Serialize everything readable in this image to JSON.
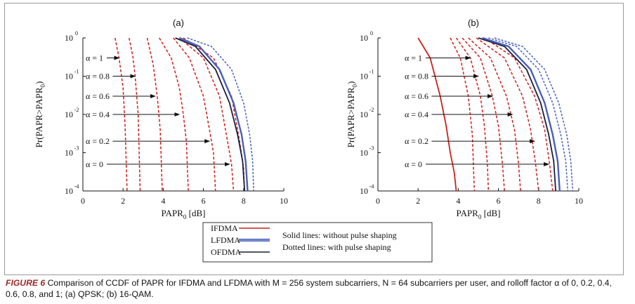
{
  "caption": {
    "label": "FIGURE 6",
    "text": "Comparison of CCDF of PAPR for IFDMA and LFDMA with M = 256 system subcarriers, N = 64 subcarriers per user, and rolloff factor α of 0, 0.2, 0.4, 0.6, 0.8, and 1; (a) QPSK; (b) 16-QAM."
  },
  "legend": {
    "entries": [
      {
        "name": "IFDMA",
        "color": "#d11f1f"
      },
      {
        "name": "LFDMA",
        "color": "#4a5fb8"
      },
      {
        "name": "OFDMA",
        "color": "#1a1f3a"
      }
    ],
    "notes": [
      "Solid lines: without pulse shaping",
      "Dotted lines: with pulse shaping"
    ]
  },
  "chart_data": [
    {
      "type": "line",
      "title": "(a)",
      "xlabel": "PAPR",
      "xlabel_sub": "0",
      "xlabel_unit": "[dB]",
      "ylabel": "Pr(PAPR>PAPR",
      "ylabel_sub": "0",
      "ylabel_end": ")",
      "xlim": [
        0,
        10
      ],
      "ylim": [
        0.0001,
        1
      ],
      "yscale": "log",
      "xticks": [
        "0",
        "2",
        "4",
        "6",
        "8",
        "10"
      ],
      "yticks": [
        {
          "base": "10",
          "exp": "0"
        },
        {
          "base": "10",
          "exp": "-1"
        },
        {
          "base": "10",
          "exp": "-2"
        },
        {
          "base": "10",
          "exp": "-3"
        },
        {
          "base": "10",
          "exp": "-4"
        }
      ],
      "annotations": [
        {
          "label": "α = 1",
          "y": 0.3,
          "x_end": 1.8
        },
        {
          "label": "α = 0.8",
          "y": 0.1,
          "x_end": 2.6
        },
        {
          "label": "α = 0.6",
          "y": 0.03,
          "x_end": 3.6
        },
        {
          "label": "α = 0.4",
          "y": 0.01,
          "x_end": 4.8
        },
        {
          "label": "α = 0.2",
          "y": 0.002,
          "x_end": 6.3
        },
        {
          "label": "α = 0",
          "y": 0.0005,
          "x_end": 7.3
        }
      ],
      "series": [
        {
          "color": "#d11f1f",
          "dash": true,
          "x": [
            1.6,
            1.8,
            2.0,
            2.1,
            2.2
          ],
          "y": [
            1,
            0.3,
            0.05,
            0.005,
            0.0001
          ]
        },
        {
          "color": "#d11f1f",
          "dash": true,
          "x": [
            2.3,
            2.5,
            2.6,
            2.75,
            2.85
          ],
          "y": [
            1,
            0.3,
            0.1,
            0.01,
            0.0001
          ]
        },
        {
          "color": "#d11f1f",
          "dash": true,
          "x": [
            3.2,
            3.5,
            3.7,
            3.85,
            3.95
          ],
          "y": [
            1,
            0.2,
            0.03,
            0.004,
            0.0001
          ]
        },
        {
          "color": "#d11f1f",
          "dash": true,
          "x": [
            3.8,
            4.4,
            4.8,
            5.0,
            5.15,
            5.25
          ],
          "y": [
            1,
            0.3,
            0.05,
            0.01,
            0.002,
            0.0001
          ]
        },
        {
          "color": "#d11f1f",
          "dash": true,
          "x": [
            4.5,
            5.3,
            6.0,
            6.3,
            6.5,
            6.6
          ],
          "y": [
            1,
            0.3,
            0.03,
            0.004,
            0.001,
            0.0001
          ]
        },
        {
          "color": "#d11f1f",
          "dash": true,
          "x": [
            4.8,
            6.0,
            6.8,
            7.2,
            7.4,
            7.5
          ],
          "y": [
            1,
            0.3,
            0.03,
            0.002,
            0.0005,
            0.0001
          ]
        },
        {
          "color": "#d11f1f",
          "dash": true,
          "x": [
            5.0,
            6.5,
            7.4,
            7.8,
            8.0,
            8.05
          ],
          "y": [
            1,
            0.3,
            0.03,
            0.002,
            0.0004,
            0.0001
          ]
        },
        {
          "color": "#1a1f3a",
          "dash": false,
          "x": [
            4.6,
            5.6,
            6.6,
            7.3,
            7.7,
            7.95,
            8.05
          ],
          "y": [
            1,
            0.6,
            0.15,
            0.02,
            0.003,
            0.0006,
            0.0001
          ]
        },
        {
          "color": "#4a5fb8",
          "dash": false,
          "x": [
            4.8,
            5.8,
            6.8,
            7.5,
            7.9,
            8.1,
            8.2
          ],
          "y": [
            1,
            0.6,
            0.15,
            0.02,
            0.003,
            0.0006,
            0.0001
          ]
        },
        {
          "color": "#4a5fb8",
          "dash": true,
          "x": [
            5.2,
            6.4,
            7.4,
            8.0,
            8.3,
            8.45,
            8.5
          ],
          "y": [
            1,
            0.6,
            0.15,
            0.02,
            0.003,
            0.0006,
            0.0001
          ]
        }
      ]
    },
    {
      "type": "line",
      "title": "(b)",
      "xlabel": "PAPR",
      "xlabel_sub": "0",
      "xlabel_unit": "[dB]",
      "ylabel": "Pr(PAPR>PAPR",
      "ylabel_sub": "0",
      "ylabel_end": ")",
      "xlim": [
        0,
        10
      ],
      "ylim": [
        0.0001,
        1
      ],
      "yscale": "log",
      "xticks": [
        "0",
        "2",
        "4",
        "6",
        "8",
        "10"
      ],
      "yticks": [
        {
          "base": "10",
          "exp": "0"
        },
        {
          "base": "10",
          "exp": "-1"
        },
        {
          "base": "10",
          "exp": "-2"
        },
        {
          "base": "10",
          "exp": "-3"
        },
        {
          "base": "10",
          "exp": "-4"
        }
      ],
      "annotations": [
        {
          "label": "α = 1",
          "y": 0.3,
          "x_end": 4.6
        },
        {
          "label": "α = 0.8",
          "y": 0.1,
          "x_end": 5.0
        },
        {
          "label": "α = 0.6",
          "y": 0.03,
          "x_end": 5.7
        },
        {
          "label": "α = 0.4",
          "y": 0.01,
          "x_end": 6.7
        },
        {
          "label": "α = 0.2",
          "y": 0.002,
          "x_end": 7.8
        },
        {
          "label": "α = 0",
          "y": 0.0005,
          "x_end": 8.5
        }
      ],
      "series": [
        {
          "color": "#d11f1f",
          "dash": false,
          "x": [
            2.0,
            2.6,
            3.1,
            3.4,
            3.6,
            3.8,
            3.9
          ],
          "y": [
            1,
            0.3,
            0.03,
            0.005,
            0.001,
            0.0003,
            0.0001
          ]
        },
        {
          "color": "#d11f1f",
          "dash": true,
          "x": [
            3.6,
            4.1,
            4.5,
            4.7,
            4.8
          ],
          "y": [
            1,
            0.3,
            0.03,
            0.003,
            0.0001
          ]
        },
        {
          "color": "#d11f1f",
          "dash": true,
          "x": [
            3.9,
            4.6,
            5.1,
            5.3,
            5.45,
            5.5
          ],
          "y": [
            1,
            0.3,
            0.03,
            0.005,
            0.0005,
            0.0001
          ]
        },
        {
          "color": "#d11f1f",
          "dash": true,
          "x": [
            4.2,
            5.1,
            5.7,
            6.0,
            6.2,
            6.3
          ],
          "y": [
            1,
            0.3,
            0.03,
            0.005,
            0.0005,
            0.0001
          ]
        },
        {
          "color": "#d11f1f",
          "dash": true,
          "x": [
            4.5,
            5.6,
            6.4,
            6.8,
            7.0,
            7.1
          ],
          "y": [
            1,
            0.3,
            0.03,
            0.004,
            0.0005,
            0.0001
          ]
        },
        {
          "color": "#d11f1f",
          "dash": true,
          "x": [
            4.9,
            6.3,
            7.2,
            7.6,
            7.85,
            8.0
          ],
          "y": [
            1,
            0.3,
            0.03,
            0.004,
            0.0005,
            0.0001
          ]
        },
        {
          "color": "#d11f1f",
          "dash": true,
          "x": [
            5.3,
            6.8,
            7.8,
            8.3,
            8.55,
            8.7
          ],
          "y": [
            1,
            0.3,
            0.03,
            0.004,
            0.0005,
            0.0001
          ]
        },
        {
          "color": "#1a1f3a",
          "dash": false,
          "x": [
            5.0,
            6.3,
            7.4,
            8.1,
            8.5,
            8.75,
            8.85
          ],
          "y": [
            1,
            0.6,
            0.15,
            0.02,
            0.003,
            0.0006,
            0.0001
          ]
        },
        {
          "color": "#4a5fb8",
          "dash": false,
          "x": [
            5.2,
            6.5,
            7.6,
            8.3,
            8.7,
            8.95,
            9.05
          ],
          "y": [
            1,
            0.6,
            0.15,
            0.02,
            0.003,
            0.0006,
            0.0001
          ]
        },
        {
          "color": "#4a5fb8",
          "dash": true,
          "x": [
            5.5,
            6.9,
            8.0,
            8.7,
            9.1,
            9.35,
            9.45
          ],
          "y": [
            1,
            0.6,
            0.15,
            0.02,
            0.003,
            0.0006,
            0.0001
          ]
        },
        {
          "color": "#4a5fb8",
          "dash": true,
          "x": [
            5.8,
            7.2,
            8.3,
            9.0,
            9.4,
            9.6,
            9.7
          ],
          "y": [
            1,
            0.6,
            0.15,
            0.02,
            0.003,
            0.0006,
            0.0001
          ]
        }
      ]
    }
  ]
}
